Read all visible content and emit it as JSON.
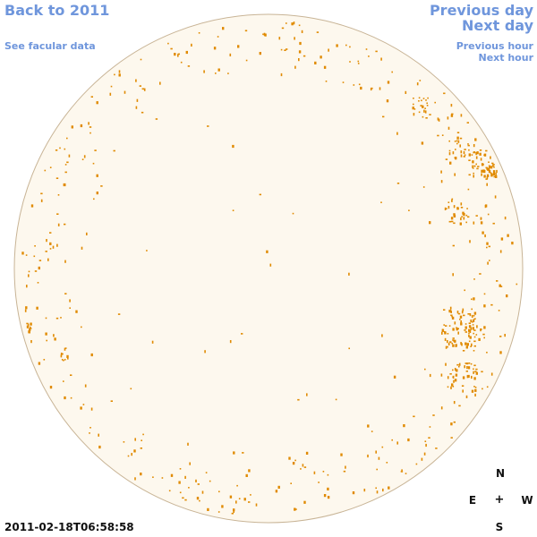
{
  "nav": {
    "back_label": "Back to 2011",
    "facular_label": "See facular data",
    "prev_day_label": "Previous day",
    "next_day_label": "Next day",
    "prev_hour_label": "Previous hour",
    "next_hour_label": "Next hour"
  },
  "timestamp": "2011-02-18T06:58:58",
  "compass": {
    "north": "N",
    "south": "S",
    "east": "E",
    "west": "W",
    "center": "+"
  },
  "colors": {
    "link": "#6f96dc",
    "disk_fill": "#fdf8ee",
    "disk_edge": "#c8b496",
    "feature": "#e08a00"
  }
}
